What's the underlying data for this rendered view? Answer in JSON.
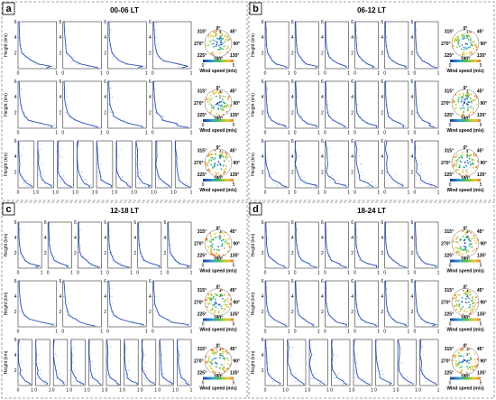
{
  "panels": [
    {
      "letter": "a",
      "title": "00-06 LT",
      "rows": [
        4,
        4,
        9
      ]
    },
    {
      "letter": "b",
      "title": "06-12 LT",
      "rows": [
        6,
        6,
        6
      ]
    },
    {
      "letter": "c",
      "title": "12-18 LT",
      "rows": [
        6,
        4,
        10
      ]
    },
    {
      "letter": "d",
      "title": "18-24 LT",
      "rows": [
        6,
        6,
        8
      ]
    }
  ],
  "ylabel": "Height (km)",
  "yticks": [
    "2",
    "4",
    "6"
  ],
  "xticks": [
    "0",
    "1"
  ],
  "rose": {
    "dirs": [
      "0°",
      "45°",
      "90°",
      "135°",
      "180°",
      "225°",
      "270°",
      "315°"
    ],
    "rings": [
      "2",
      "4"
    ],
    "cbar_label": "Wind speed (m/s)",
    "cbar_ticks": [
      "0",
      "5"
    ]
  },
  "colors": {
    "profile": "#2a4fb8",
    "profile_light": "#9fb4e6",
    "frame": "#333333",
    "divider": "#888888"
  },
  "chart_data": {
    "type": "line",
    "xlim": [
      0,
      1
    ],
    "ylim": [
      0,
      6
    ],
    "ylabel": "Height (km)",
    "profile_shape": {
      "height_km": [
        0.1,
        0.3,
        0.6,
        1.0,
        1.5,
        2.0,
        3.0,
        4.0,
        5.0,
        6.0
      ],
      "normalized_value": [
        1.0,
        0.85,
        0.6,
        0.35,
        0.2,
        0.12,
        0.07,
        0.05,
        0.04,
        0.03
      ]
    }
  }
}
